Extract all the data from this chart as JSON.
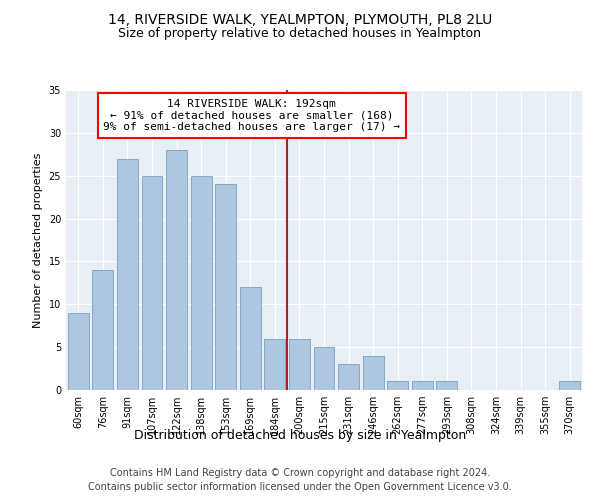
{
  "title": "14, RIVERSIDE WALK, YEALMPTON, PLYMOUTH, PL8 2LU",
  "subtitle": "Size of property relative to detached houses in Yealmpton",
  "xlabel": "Distribution of detached houses by size in Yealmpton",
  "ylabel": "Number of detached properties",
  "categories": [
    "60sqm",
    "76sqm",
    "91sqm",
    "107sqm",
    "122sqm",
    "138sqm",
    "153sqm",
    "169sqm",
    "184sqm",
    "200sqm",
    "215sqm",
    "231sqm",
    "246sqm",
    "262sqm",
    "277sqm",
    "293sqm",
    "308sqm",
    "324sqm",
    "339sqm",
    "355sqm",
    "370sqm"
  ],
  "values": [
    9,
    14,
    27,
    25,
    28,
    25,
    24,
    12,
    6,
    6,
    5,
    3,
    4,
    1,
    1,
    1,
    0,
    0,
    0,
    0,
    1
  ],
  "bar_color": "#aec6df",
  "bar_edgecolor": "#6699bb",
  "vline_color": "#aa2222",
  "annotation_line0": "14 RIVERSIDE WALK: 192sqm",
  "annotation_line1": "← 91% of detached houses are smaller (168)",
  "annotation_line2": "9% of semi-detached houses are larger (17) →",
  "ylim": [
    0,
    35
  ],
  "yticks": [
    0,
    5,
    10,
    15,
    20,
    25,
    30,
    35
  ],
  "background_color": "#e8eef5",
  "grid_color": "#ffffff",
  "footer_line1": "Contains HM Land Registry data © Crown copyright and database right 2024.",
  "footer_line2": "Contains public sector information licensed under the Open Government Licence v3.0.",
  "title_fontsize": 10,
  "subtitle_fontsize": 9,
  "xlabel_fontsize": 9,
  "ylabel_fontsize": 8,
  "tick_fontsize": 7,
  "footer_fontsize": 7,
  "annot_fontsize": 8
}
